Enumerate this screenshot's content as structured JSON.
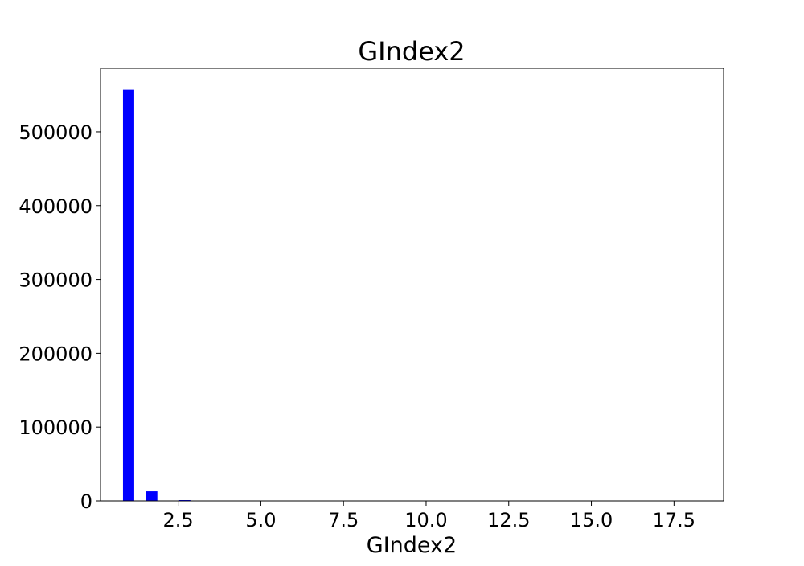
{
  "chart_data": {
    "type": "bar",
    "title": "GIndex2",
    "xlabel": "GIndex2",
    "ylabel": "",
    "xlim": [
      0.15,
      19.0
    ],
    "ylim": [
      0,
      586000
    ],
    "x_ticks": [
      2.5,
      5.0,
      7.5,
      10.0,
      12.5,
      15.0,
      17.5
    ],
    "x_tick_labels": [
      "2.5",
      "5.0",
      "7.5",
      "10.0",
      "12.5",
      "15.0",
      "17.5"
    ],
    "y_ticks": [
      0,
      100000,
      200000,
      300000,
      400000,
      500000
    ],
    "y_tick_labels": [
      "0",
      "100000",
      "200000",
      "300000",
      "400000",
      "500000"
    ],
    "bar_width": 0.34,
    "bar_color": "#0000ff",
    "grid": false,
    "legend": "none",
    "x": [
      1.0,
      1.7,
      2.7
    ],
    "values": [
      557000,
      13000,
      800
    ]
  }
}
